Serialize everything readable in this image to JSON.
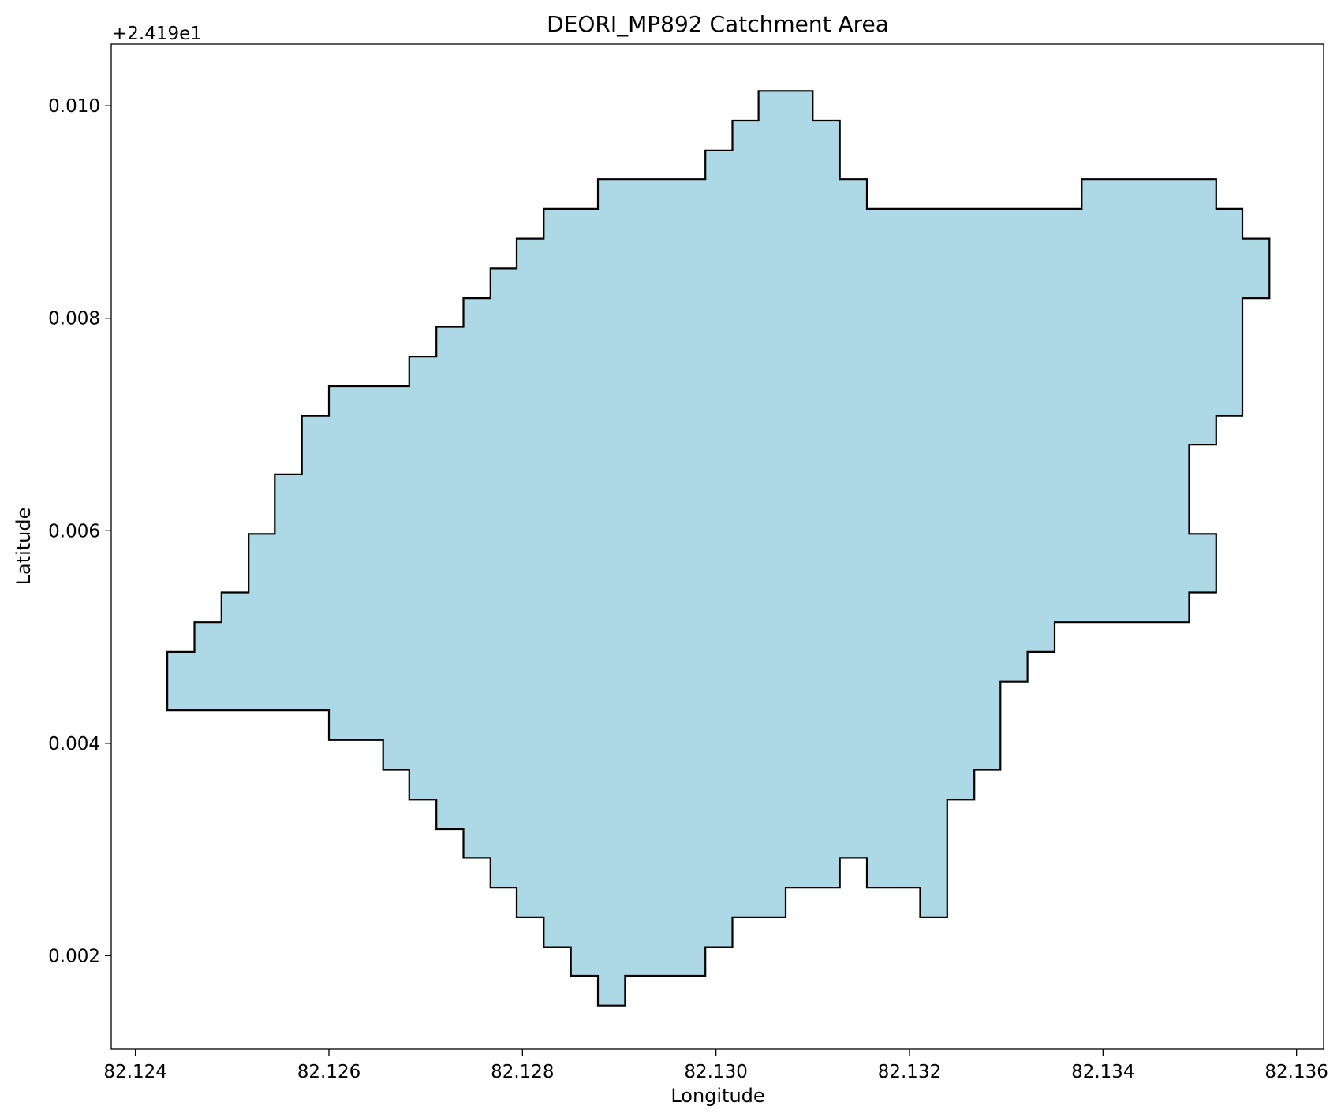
{
  "chart_data": {
    "type": "area",
    "title": "DEORI_MP892 Catchment Area",
    "xlabel": "Longitude",
    "ylabel": "Latitude",
    "y_offset_label": "+2.419e1",
    "y_offset": 24.19,
    "xlim": [
      82.12375,
      82.13628
    ],
    "ylim": [
      0.00112,
      0.01058
    ],
    "x_ticks": [
      {
        "value": 82.124,
        "label": "82.124"
      },
      {
        "value": 82.126,
        "label": "82.126"
      },
      {
        "value": 82.128,
        "label": "82.128"
      },
      {
        "value": 82.13,
        "label": "82.130"
      },
      {
        "value": 82.132,
        "label": "82.132"
      },
      {
        "value": 82.134,
        "label": "82.134"
      },
      {
        "value": 82.136,
        "label": "82.136"
      }
    ],
    "y_ticks": [
      {
        "value": 0.002,
        "label": "0.002"
      },
      {
        "value": 0.004,
        "label": "0.004"
      },
      {
        "value": 0.006,
        "label": "0.006"
      },
      {
        "value": 0.008,
        "label": "0.008"
      },
      {
        "value": 0.01,
        "label": "0.010"
      }
    ],
    "grid": false,
    "fill_color": "#add8e6",
    "edge_color": "#000000",
    "polygon": [
      [
        82.12433,
        0.00431
      ],
      [
        82.126,
        0.00431
      ],
      [
        82.126,
        0.00403
      ],
      [
        82.12656,
        0.00403
      ],
      [
        82.12656,
        0.00375
      ],
      [
        82.12683,
        0.00375
      ],
      [
        82.12683,
        0.00347
      ],
      [
        82.12711,
        0.00347
      ],
      [
        82.12711,
        0.00319
      ],
      [
        82.12739,
        0.00319
      ],
      [
        82.12739,
        0.00292
      ],
      [
        82.12767,
        0.00292
      ],
      [
        82.12767,
        0.00264
      ],
      [
        82.12794,
        0.00264
      ],
      [
        82.12794,
        0.00236
      ],
      [
        82.12822,
        0.00236
      ],
      [
        82.12822,
        0.00208
      ],
      [
        82.1285,
        0.00208
      ],
      [
        82.1285,
        0.00181
      ],
      [
        82.12878,
        0.00181
      ],
      [
        82.12878,
        0.00153
      ],
      [
        82.12906,
        0.00153
      ],
      [
        82.12906,
        0.00181
      ],
      [
        82.12989,
        0.00181
      ],
      [
        82.12989,
        0.00208
      ],
      [
        82.13017,
        0.00208
      ],
      [
        82.13017,
        0.00236
      ],
      [
        82.13072,
        0.00236
      ],
      [
        82.13072,
        0.00264
      ],
      [
        82.13128,
        0.00264
      ],
      [
        82.13128,
        0.00292
      ],
      [
        82.13156,
        0.00292
      ],
      [
        82.13156,
        0.00264
      ],
      [
        82.13211,
        0.00264
      ],
      [
        82.13211,
        0.00236
      ],
      [
        82.13239,
        0.00236
      ],
      [
        82.13239,
        0.00347
      ],
      [
        82.13267,
        0.00347
      ],
      [
        82.13267,
        0.00375
      ],
      [
        82.13294,
        0.00375
      ],
      [
        82.13294,
        0.00458
      ],
      [
        82.13322,
        0.00458
      ],
      [
        82.13322,
        0.00486
      ],
      [
        82.1335,
        0.00486
      ],
      [
        82.1335,
        0.00514
      ],
      [
        82.13489,
        0.00514
      ],
      [
        82.13489,
        0.00542
      ],
      [
        82.13517,
        0.00542
      ],
      [
        82.13517,
        0.00597
      ],
      [
        82.13489,
        0.00597
      ],
      [
        82.13489,
        0.00681
      ],
      [
        82.13517,
        0.00681
      ],
      [
        82.13517,
        0.00708
      ],
      [
        82.13544,
        0.00708
      ],
      [
        82.13544,
        0.00819
      ],
      [
        82.13572,
        0.00819
      ],
      [
        82.13572,
        0.00875
      ],
      [
        82.13544,
        0.00875
      ],
      [
        82.13544,
        0.00903
      ],
      [
        82.13517,
        0.00903
      ],
      [
        82.13517,
        0.00931
      ],
      [
        82.13378,
        0.00931
      ],
      [
        82.13378,
        0.00903
      ],
      [
        82.13156,
        0.00903
      ],
      [
        82.13156,
        0.00931
      ],
      [
        82.13128,
        0.00931
      ],
      [
        82.13128,
        0.00986
      ],
      [
        82.131,
        0.00986
      ],
      [
        82.131,
        0.01014
      ],
      [
        82.13044,
        0.01014
      ],
      [
        82.13044,
        0.00986
      ],
      [
        82.13017,
        0.00986
      ],
      [
        82.13017,
        0.00958
      ],
      [
        82.12989,
        0.00958
      ],
      [
        82.12989,
        0.00931
      ],
      [
        82.12878,
        0.00931
      ],
      [
        82.12878,
        0.00903
      ],
      [
        82.12822,
        0.00903
      ],
      [
        82.12822,
        0.00875
      ],
      [
        82.12794,
        0.00875
      ],
      [
        82.12794,
        0.00847
      ],
      [
        82.12767,
        0.00847
      ],
      [
        82.12767,
        0.00819
      ],
      [
        82.12739,
        0.00819
      ],
      [
        82.12739,
        0.00792
      ],
      [
        82.12711,
        0.00792
      ],
      [
        82.12711,
        0.00764
      ],
      [
        82.12683,
        0.00764
      ],
      [
        82.12683,
        0.00736
      ],
      [
        82.126,
        0.00736
      ],
      [
        82.126,
        0.00708
      ],
      [
        82.12572,
        0.00708
      ],
      [
        82.12572,
        0.00653
      ],
      [
        82.12544,
        0.00653
      ],
      [
        82.12544,
        0.00597
      ],
      [
        82.12517,
        0.00597
      ],
      [
        82.12517,
        0.00542
      ],
      [
        82.12489,
        0.00542
      ],
      [
        82.12489,
        0.00514
      ],
      [
        82.12461,
        0.00514
      ],
      [
        82.12461,
        0.00486
      ],
      [
        82.12433,
        0.00486
      ]
    ]
  }
}
